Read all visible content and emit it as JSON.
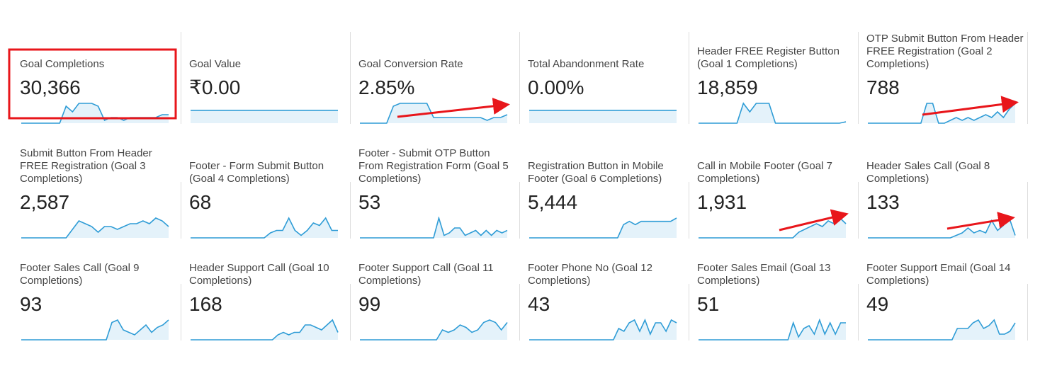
{
  "tiles": [
    {
      "title": "Goal Completions",
      "value": "30,366",
      "sparkline": [
        0,
        0,
        0,
        0,
        0,
        0,
        0,
        6,
        4,
        7,
        7,
        7,
        6,
        1,
        2,
        2,
        1,
        2,
        2,
        2,
        2,
        2,
        3,
        3
      ]
    },
    {
      "title": "Goal Value",
      "value": "₹0.00",
      "sparkline": [
        0,
        0,
        0,
        0,
        0,
        0,
        0,
        0,
        0,
        0,
        0,
        0,
        0,
        0,
        0,
        0,
        0,
        0,
        0,
        0,
        0,
        0,
        0,
        0
      ]
    },
    {
      "title": "Goal Conversion Rate",
      "value": "2.85%",
      "sparkline": [
        0,
        0,
        0,
        0,
        0,
        6,
        7,
        7,
        7,
        7,
        7,
        2,
        2,
        2,
        2,
        2,
        2,
        2,
        2,
        1,
        2,
        2,
        3
      ]
    },
    {
      "title": "Total Abandonment Rate",
      "value": "0.00%",
      "sparkline": [
        0,
        0,
        0,
        0,
        0,
        0,
        0,
        0,
        0,
        0,
        0,
        0,
        0,
        0,
        0,
        0,
        0,
        0,
        0,
        0,
        0,
        0,
        0,
        0
      ]
    },
    {
      "title": "Header FREE Register Button (Goal 1 Completions)",
      "value": "18,859",
      "sparkline": [
        0,
        0,
        0,
        0,
        0,
        0,
        0,
        7,
        4,
        7,
        7,
        7,
        0,
        0,
        0,
        0,
        0,
        0,
        0,
        0,
        0,
        0,
        0,
        0.5
      ]
    },
    {
      "title": "OTP Submit Button From Header FREE Registration (Goal 2 Completions)",
      "value": "788",
      "sparkline": [
        0,
        0,
        0,
        0,
        0,
        0,
        0,
        0,
        0,
        0,
        7,
        7,
        0,
        0,
        1,
        2,
        1,
        2,
        1,
        2,
        3,
        2,
        4,
        2,
        5,
        7
      ]
    },
    {
      "title": "Submit Button From Header FREE Registration (Goal 3 Completions)",
      "value": "2,587",
      "sparkline": [
        0,
        0,
        0,
        0,
        0,
        0,
        0,
        0,
        3,
        6,
        5,
        4,
        2,
        4,
        4,
        3,
        4,
        5,
        5,
        6,
        5,
        7,
        6,
        4
      ]
    },
    {
      "title": "Footer - Form Submit Button (Goal 4 Completions)",
      "value": "68",
      "sparkline": [
        0,
        0,
        0,
        0,
        0,
        0,
        0,
        0,
        0,
        0,
        0,
        0,
        0,
        2,
        3,
        3,
        8,
        3,
        1,
        3,
        6,
        5,
        8,
        3,
        3
      ]
    },
    {
      "title": "Footer - Submit OTP Button From Registration Form (Goal 5 Completions)",
      "value": "53",
      "sparkline": [
        0,
        0,
        0,
        0,
        0,
        0,
        0,
        0,
        0,
        0,
        0,
        0,
        0,
        0,
        0,
        8,
        1,
        2,
        4,
        4,
        1,
        2,
        3,
        1,
        3,
        1,
        3,
        2,
        3
      ]
    },
    {
      "title": "Registration Button in Mobile Footer (Goal 6 Completions)",
      "value": "5,444",
      "sparkline": [
        0,
        0,
        0,
        0,
        0,
        0,
        0,
        0,
        0,
        0,
        0,
        0,
        0,
        0,
        0,
        0,
        4,
        5,
        4,
        5,
        5,
        5,
        5,
        5,
        5,
        6
      ]
    },
    {
      "title": "Call in Mobile Footer (Goal 7 Completions)",
      "value": "1,931",
      "sparkline": [
        0,
        0,
        0,
        0,
        0,
        0,
        0,
        0,
        0,
        0,
        0,
        0,
        0,
        0,
        0,
        0,
        0,
        2,
        3,
        4,
        5,
        4,
        6,
        5,
        7,
        5
      ]
    },
    {
      "title": "Header Sales Call (Goal 8 Completions)",
      "value": "133",
      "sparkline": [
        0,
        0,
        0,
        0,
        0,
        0,
        0,
        0,
        0,
        0,
        0,
        0,
        0,
        0,
        0,
        1,
        2,
        4,
        2,
        3,
        2,
        7,
        3,
        5,
        8,
        1
      ]
    },
    {
      "title": "Footer Sales Call (Goal 9 Completions)",
      "value": "93",
      "sparkline": [
        0,
        0,
        0,
        0,
        0,
        0,
        0,
        0,
        0,
        0,
        0,
        0,
        0,
        0,
        0,
        0,
        7,
        8,
        4,
        3,
        2,
        4,
        6,
        3,
        5,
        6,
        8
      ]
    },
    {
      "title": "Header Support Call (Goal 10 Completions)",
      "value": "168",
      "sparkline": [
        0,
        0,
        0,
        0,
        0,
        0,
        0,
        0,
        0,
        0,
        0,
        0,
        0,
        0,
        0,
        0,
        2,
        3,
        2,
        3,
        3,
        6,
        6,
        5,
        4,
        6,
        8,
        3
      ]
    },
    {
      "title": "Footer Support Call (Goal 11 Completions)",
      "value": "99",
      "sparkline": [
        0,
        0,
        0,
        0,
        0,
        0,
        0,
        0,
        0,
        0,
        0,
        0,
        0,
        0,
        4,
        3,
        4,
        6,
        5,
        3,
        4,
        7,
        8,
        7,
        4,
        7
      ]
    },
    {
      "title": "Footer Phone No (Goal 12 Completions)",
      "value": "43",
      "sparkline": [
        0,
        0,
        0,
        0,
        0,
        0,
        0,
        0,
        0,
        0,
        0,
        0,
        0,
        0,
        0,
        0,
        0,
        4,
        3,
        6,
        7,
        3,
        7,
        2,
        6,
        6,
        3,
        7,
        6
      ]
    },
    {
      "title": "Footer Sales Email (Goal 13 Completions)",
      "value": "51",
      "sparkline": [
        0,
        0,
        0,
        0,
        0,
        0,
        0,
        0,
        0,
        0,
        0,
        0,
        0,
        0,
        0,
        0,
        0,
        0,
        6,
        1,
        4,
        5,
        2,
        7,
        2,
        6,
        2,
        6,
        6
      ]
    },
    {
      "title": "Footer Support Email (Goal 14 Completions)",
      "value": "49",
      "sparkline": [
        0,
        0,
        0,
        0,
        0,
        0,
        0,
        0,
        0,
        0,
        0,
        0,
        0,
        0,
        0,
        0,
        0,
        4,
        4,
        4,
        6,
        7,
        4,
        5,
        7,
        2,
        2,
        3,
        6
      ]
    }
  ]
}
